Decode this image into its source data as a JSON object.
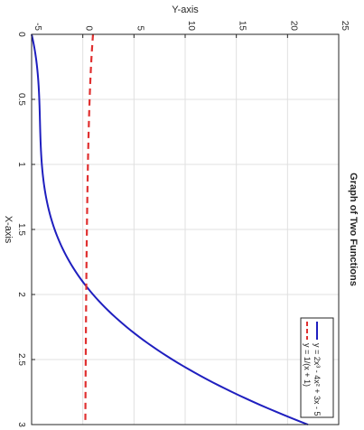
{
  "chart_data": {
    "type": "line",
    "title": "Graph of Two Functions",
    "xlabel": "X-axis",
    "ylabel": "Y-axis",
    "xlim": [
      0,
      3
    ],
    "ylim": [
      -5,
      25
    ],
    "x_ticks": [
      "0",
      "0.5",
      "1",
      "1.5",
      "2",
      "2.5",
      "3"
    ],
    "y_ticks": [
      "-5",
      "0",
      "5",
      "10",
      "15",
      "20",
      "25"
    ],
    "grid": true,
    "legend_position": "bottom-right",
    "series": [
      {
        "name": "y = 2x³ - 4x² + 3x - 5",
        "color": "#1f1fbf",
        "style": "solid",
        "x": [
          0,
          0.25,
          0.5,
          0.75,
          1,
          1.25,
          1.5,
          1.75,
          2,
          2.25,
          2.5,
          2.75,
          3
        ],
        "y": [
          -5,
          -4.47,
          -4.25,
          -4.16,
          -4,
          -3.59,
          -2.75,
          -1.28,
          1,
          4.28,
          8.75,
          14.59,
          22
        ]
      },
      {
        "name": "y = 1/(x + 1)",
        "color": "#e03030",
        "style": "dashed",
        "x": [
          0,
          0.25,
          0.5,
          0.75,
          1,
          1.25,
          1.5,
          1.75,
          2,
          2.25,
          2.5,
          2.75,
          3
        ],
        "y": [
          1,
          0.8,
          0.667,
          0.571,
          0.5,
          0.444,
          0.4,
          0.364,
          0.333,
          0.308,
          0.286,
          0.267,
          0.25
        ]
      }
    ]
  }
}
